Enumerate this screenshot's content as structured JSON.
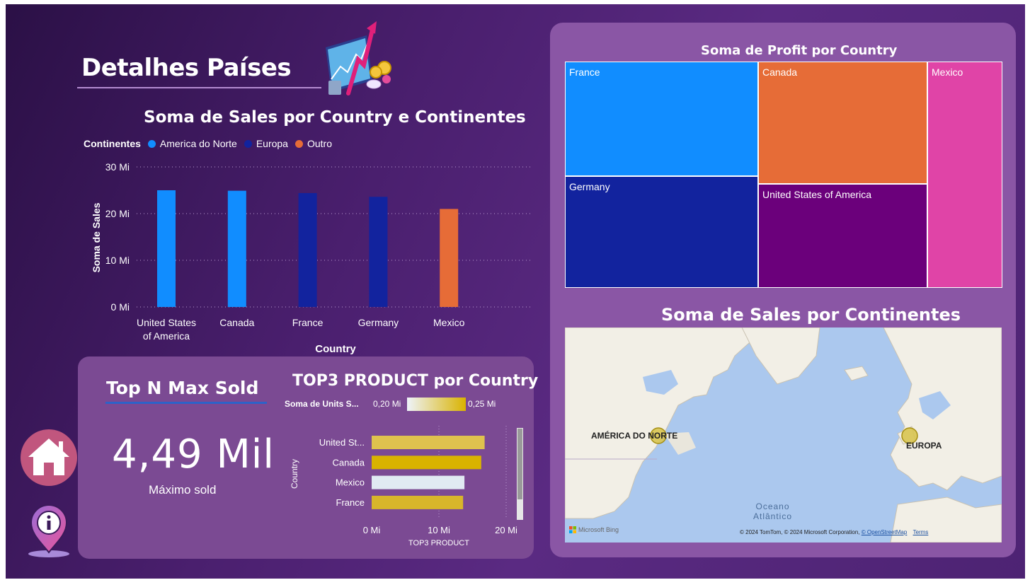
{
  "page": {
    "title": "Detalhes Países"
  },
  "sales_chart": {
    "title": "Soma de Sales por Country e Continentes",
    "legend_title": "Continentes",
    "legend": [
      {
        "name": "America do Norte",
        "color": "#118dff"
      },
      {
        "name": "Europa",
        "color": "#12239e"
      },
      {
        "name": "Outro",
        "color": "#e66c37"
      }
    ],
    "y_ticks": [
      "30 Mi",
      "20 Mi",
      "10 Mi",
      "0 Mi"
    ],
    "ylabel": "Soma de Sales",
    "xlabel": "Country",
    "categories": [
      "United States of America",
      "Canada",
      "France",
      "Germany",
      "Mexico"
    ],
    "category_lines": [
      [
        "United States",
        "of America"
      ],
      [
        "Canada"
      ],
      [
        "France"
      ],
      [
        "Germany"
      ],
      [
        "Mexico"
      ]
    ]
  },
  "kpi": {
    "label": "Top N Max Sold",
    "value": "4,49 Mil",
    "caption": "Máximo sold"
  },
  "top3_chart": {
    "title": "TOP3 PRODUCT por Country",
    "gradient_label": "Soma de Units S...",
    "gradient_min": "0,20 Mi",
    "gradient_max": "0,25 Mi",
    "ylabel": "Country",
    "xlabel": "TOP3 PRODUCT",
    "x_ticks": [
      "0 Mi",
      "10 Mi",
      "20 Mi"
    ],
    "categories": [
      "United St...",
      "Canada",
      "Mexico",
      "France"
    ]
  },
  "treemap": {
    "title": "Soma de Profit por Country"
  },
  "map": {
    "title": "Soma de Sales por Continentes",
    "labels": [
      "AMÉRICA DO NORTE",
      "EUROPA"
    ],
    "ocean": [
      "Oceano",
      "Atlântico"
    ],
    "brand": "Microsoft Bing",
    "copyright": "© 2024 TomTom, © 2024 Microsoft Corporation,",
    "osm_link": "© OpenStreetMap",
    "terms_link": "Terms"
  },
  "chart_data": [
    {
      "type": "bar",
      "title": "Soma de Sales por Country e Continentes",
      "xlabel": "Country",
      "ylabel": "Soma de Sales",
      "ylim": [
        0,
        30
      ],
      "unit": "Mi",
      "grid": true,
      "legend_position": "top-left",
      "categories": [
        "United States of America",
        "Canada",
        "France",
        "Germany",
        "Mexico"
      ],
      "series": [
        {
          "name": "America do Norte",
          "color": "#118dff",
          "values": [
            25.0,
            24.9,
            null,
            null,
            null
          ]
        },
        {
          "name": "Europa",
          "color": "#12239e",
          "values": [
            null,
            null,
            24.4,
            23.6,
            null
          ]
        },
        {
          "name": "Outro",
          "color": "#e66c37",
          "values": [
            null,
            null,
            null,
            null,
            21.0
          ]
        }
      ]
    },
    {
      "type": "bar",
      "orientation": "horizontal",
      "title": "TOP3 PRODUCT por Country",
      "xlabel": "TOP3 PRODUCT",
      "ylabel": "Country",
      "xlim": [
        0,
        22
      ],
      "unit": "Mi",
      "categories": [
        "United St...",
        "Canada",
        "Mexico",
        "France"
      ],
      "values": [
        16.8,
        16.3,
        13.8,
        13.6
      ],
      "colors": [
        "#dfc24e",
        "#d9b300",
        "#e1eaf2",
        "#d8b62a"
      ]
    },
    {
      "type": "treemap",
      "title": "Soma de Profit por Country",
      "categories": [
        "France",
        "Germany",
        "Canada",
        "United States of America",
        "Mexico"
      ],
      "values": [
        4.3,
        4.2,
        3.5,
        3.4,
        1.4
      ],
      "colors": [
        "#118dff",
        "#12239e",
        "#e66c37",
        "#6b007b",
        "#e044a7"
      ]
    }
  ]
}
